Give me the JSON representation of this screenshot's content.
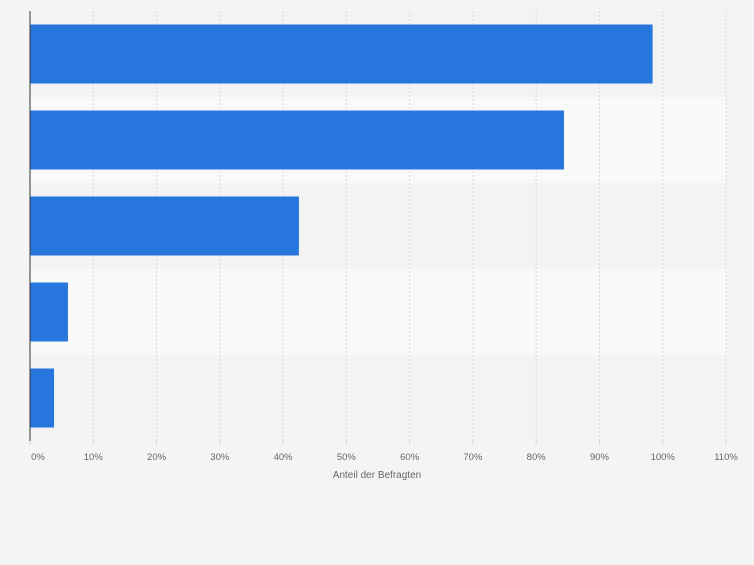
{
  "chart_data": {
    "type": "bar",
    "orientation": "horizontal",
    "categories": [
      "",
      "",
      "",
      "",
      ""
    ],
    "values": [
      98.4,
      84.4,
      42.5,
      6.0,
      3.8
    ],
    "xlabel": "Anteil der Befragten",
    "ylabel": "",
    "xlim": [
      0,
      110
    ],
    "ticks": [
      0,
      10,
      20,
      30,
      40,
      50,
      60,
      70,
      80,
      90,
      100,
      110
    ],
    "tick_labels": [
      "0%",
      "10%",
      "20%",
      "30%",
      "40%",
      "50%",
      "60%",
      "70%",
      "80%",
      "90%",
      "100%",
      "110%"
    ],
    "grid": true,
    "colors": {
      "bar": "#2776dd",
      "band_dark": "#f3f3f3",
      "band_light": "#f9f9f9",
      "grid": "#d8d8d8",
      "axis": "#333333",
      "text": "#666666"
    }
  }
}
